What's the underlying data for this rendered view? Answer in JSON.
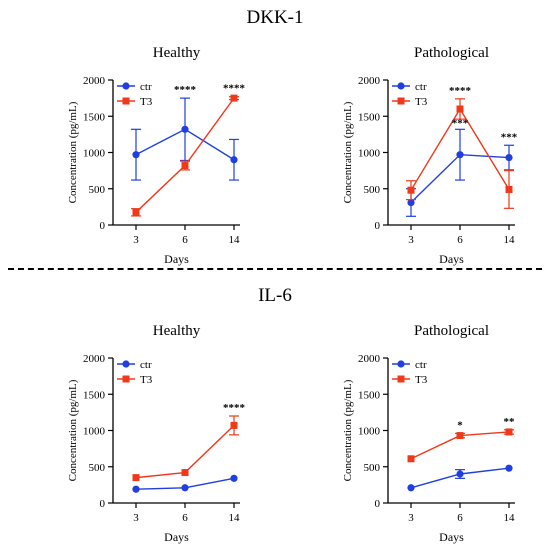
{
  "sections": [
    {
      "title": "DKK-1"
    },
    {
      "title": "IL-6"
    }
  ],
  "colors": {
    "ctr": "#1f3fe0",
    "T3": "#f0381a",
    "axis": "#000000"
  },
  "chart_data": [
    {
      "type": "line",
      "section": "DKK-1",
      "title": "Healthy",
      "xlabel": "Days",
      "ylabel": "Concentration (pg/mL)",
      "categories": [
        "3",
        "6",
        "14"
      ],
      "ylim": [
        0,
        2000
      ],
      "yticks": [
        "0",
        "500",
        "1000",
        "1500",
        "2000"
      ],
      "legend": "top-left",
      "series": [
        {
          "name": "ctr",
          "marker": "circle",
          "values": [
            970,
            1320,
            900
          ],
          "err": [
            350,
            430,
            280
          ]
        },
        {
          "name": "T3",
          "marker": "square",
          "values": [
            175,
            820,
            1750
          ],
          "err": [
            50,
            60,
            20
          ]
        }
      ],
      "annotations": [
        {
          "category": "6",
          "text": "****"
        },
        {
          "category": "14",
          "text": "****"
        }
      ]
    },
    {
      "type": "line",
      "section": "DKK-1",
      "title": "Pathological",
      "xlabel": "Days",
      "ylabel": "Concentration (pg/mL)",
      "categories": [
        "3",
        "6",
        "14"
      ],
      "ylim": [
        0,
        2000
      ],
      "yticks": [
        "0",
        "500",
        "1000",
        "1500",
        "2000"
      ],
      "legend": "top-left",
      "series": [
        {
          "name": "ctr",
          "marker": "circle",
          "values": [
            310,
            970,
            930
          ],
          "err": [
            190,
            350,
            170
          ]
        },
        {
          "name": "T3",
          "marker": "square",
          "values": [
            480,
            1600,
            490
          ],
          "err": [
            130,
            140,
            260
          ]
        }
      ],
      "annotations": [
        {
          "category": "6",
          "text": "****"
        },
        {
          "category": "6",
          "text": "***"
        },
        {
          "category": "14",
          "text": "***"
        }
      ]
    },
    {
      "type": "line",
      "section": "IL-6",
      "title": "Healthy",
      "xlabel": "Days",
      "ylabel": "Concentration (pg/mL)",
      "categories": [
        "3",
        "6",
        "14"
      ],
      "ylim": [
        0,
        2000
      ],
      "yticks": [
        "0",
        "500",
        "1000",
        "1500",
        "2000"
      ],
      "legend": "top-left",
      "series": [
        {
          "name": "ctr",
          "marker": "circle",
          "values": [
            190,
            210,
            340
          ],
          "err": [
            0,
            0,
            0
          ]
        },
        {
          "name": "T3",
          "marker": "square",
          "values": [
            350,
            420,
            1070
          ],
          "err": [
            0,
            0,
            130
          ]
        }
      ],
      "annotations": [
        {
          "category": "14",
          "text": "****"
        }
      ]
    },
    {
      "type": "line",
      "section": "IL-6",
      "title": "Pathological",
      "xlabel": "Days",
      "ylabel": "Concentration (pg/mL)",
      "categories": [
        "3",
        "6",
        "14"
      ],
      "ylim": [
        0,
        2000
      ],
      "yticks": [
        "0",
        "500",
        "1000",
        "1500",
        "2000"
      ],
      "legend": "top-left",
      "series": [
        {
          "name": "ctr",
          "marker": "circle",
          "values": [
            210,
            400,
            480
          ],
          "err": [
            0,
            60,
            0
          ]
        },
        {
          "name": "T3",
          "marker": "square",
          "values": [
            610,
            930,
            980
          ],
          "err": [
            0,
            30,
            30
          ]
        }
      ],
      "annotations": [
        {
          "category": "6",
          "text": "*"
        },
        {
          "category": "14",
          "text": "**"
        }
      ]
    }
  ]
}
